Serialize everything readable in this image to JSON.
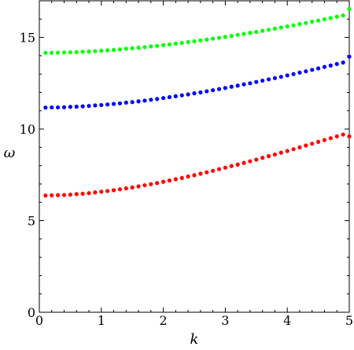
{
  "chart_data": {
    "type": "scatter",
    "title": "",
    "xlabel": "k",
    "ylabel": "ω",
    "xlim": [
      0,
      5
    ],
    "ylim": [
      0,
      17
    ],
    "grid": false,
    "legend": "none",
    "x_ticks": [
      0,
      1,
      2,
      3,
      4,
      5
    ],
    "y_ticks": [
      0,
      5,
      10,
      15
    ],
    "x_tick_labels": [
      "0",
      "1",
      "2",
      "3",
      "4",
      "5"
    ],
    "y_tick_labels": [
      "0",
      "5",
      "10",
      "15"
    ],
    "series": [
      {
        "color": "#ff0000",
        "x": [
          0.1,
          0.2,
          0.3,
          0.4,
          0.5,
          0.6,
          0.7,
          0.8,
          0.9,
          1.0,
          1.1,
          1.2,
          1.3,
          1.4,
          1.5,
          1.6,
          1.7,
          1.8,
          1.9,
          2.0,
          2.1,
          2.2,
          2.3,
          2.4,
          2.5,
          2.6,
          2.7,
          2.8,
          2.9,
          3.0,
          3.1,
          3.2,
          3.3,
          3.4,
          3.5,
          3.6,
          3.7,
          3.8,
          3.9,
          4.0,
          4.1,
          4.2,
          4.3,
          4.4,
          4.5,
          4.6,
          4.7,
          4.8,
          4.9,
          5.0
        ],
        "y": [
          6.37,
          6.38,
          6.39,
          6.4,
          6.42,
          6.45,
          6.47,
          6.5,
          6.54,
          6.58,
          6.62,
          6.66,
          6.71,
          6.76,
          6.81,
          6.87,
          6.93,
          6.99,
          7.05,
          7.12,
          7.19,
          7.26,
          7.33,
          7.41,
          7.48,
          7.56,
          7.64,
          7.72,
          7.81,
          7.89,
          7.98,
          8.06,
          8.15,
          8.24,
          8.33,
          8.43,
          8.52,
          8.61,
          8.71,
          8.8,
          8.9,
          9.0,
          9.1,
          9.2,
          9.3,
          9.4,
          9.5,
          9.6,
          9.7,
          9.6
        ]
      },
      {
        "color": "#0000ff",
        "x": [
          0.1,
          0.2,
          0.3,
          0.4,
          0.5,
          0.6,
          0.7,
          0.8,
          0.9,
          1.0,
          1.1,
          1.2,
          1.3,
          1.4,
          1.5,
          1.6,
          1.7,
          1.8,
          1.9,
          2.0,
          2.1,
          2.2,
          2.3,
          2.4,
          2.5,
          2.6,
          2.7,
          2.8,
          2.9,
          3.0,
          3.1,
          3.2,
          3.3,
          3.4,
          3.5,
          3.6,
          3.7,
          3.8,
          3.9,
          4.0,
          4.1,
          4.2,
          4.3,
          4.4,
          4.5,
          4.6,
          4.7,
          4.8,
          4.9,
          5.0
        ],
        "y": [
          11.17,
          11.18,
          11.18,
          11.19,
          11.21,
          11.22,
          11.24,
          11.26,
          11.29,
          11.31,
          11.34,
          11.37,
          11.4,
          11.44,
          11.47,
          11.51,
          11.55,
          11.6,
          11.64,
          11.69,
          11.74,
          11.79,
          11.84,
          11.89,
          11.95,
          12.0,
          12.06,
          12.12,
          12.18,
          12.24,
          12.31,
          12.37,
          12.44,
          12.5,
          12.57,
          12.64,
          12.71,
          12.78,
          12.85,
          12.93,
          13.0,
          13.08,
          13.15,
          13.23,
          13.31,
          13.39,
          13.47,
          13.55,
          13.63,
          13.95
        ]
      },
      {
        "color": "#00ff00",
        "x": [
          0.1,
          0.2,
          0.3,
          0.4,
          0.5,
          0.6,
          0.7,
          0.8,
          0.9,
          1.0,
          1.1,
          1.2,
          1.3,
          1.4,
          1.5,
          1.6,
          1.7,
          1.8,
          1.9,
          2.0,
          2.1,
          2.2,
          2.3,
          2.4,
          2.5,
          2.6,
          2.7,
          2.8,
          2.9,
          3.0,
          3.1,
          3.2,
          3.3,
          3.4,
          3.5,
          3.6,
          3.7,
          3.8,
          3.9,
          4.0,
          4.1,
          4.2,
          4.3,
          4.4,
          4.5,
          4.6,
          4.7,
          4.8,
          4.9,
          5.0
        ],
        "y": [
          14.16,
          14.16,
          14.17,
          14.18,
          14.19,
          14.2,
          14.22,
          14.23,
          14.25,
          14.27,
          14.3,
          14.32,
          14.35,
          14.38,
          14.41,
          14.44,
          14.47,
          14.51,
          14.54,
          14.58,
          14.62,
          14.66,
          14.7,
          14.75,
          14.79,
          14.84,
          14.88,
          14.93,
          14.98,
          15.03,
          15.08,
          15.14,
          15.19,
          15.25,
          15.3,
          15.36,
          15.42,
          15.48,
          15.54,
          15.6,
          15.66,
          15.73,
          15.79,
          15.86,
          15.92,
          15.99,
          16.06,
          16.13,
          16.2,
          16.55
        ]
      }
    ]
  }
}
